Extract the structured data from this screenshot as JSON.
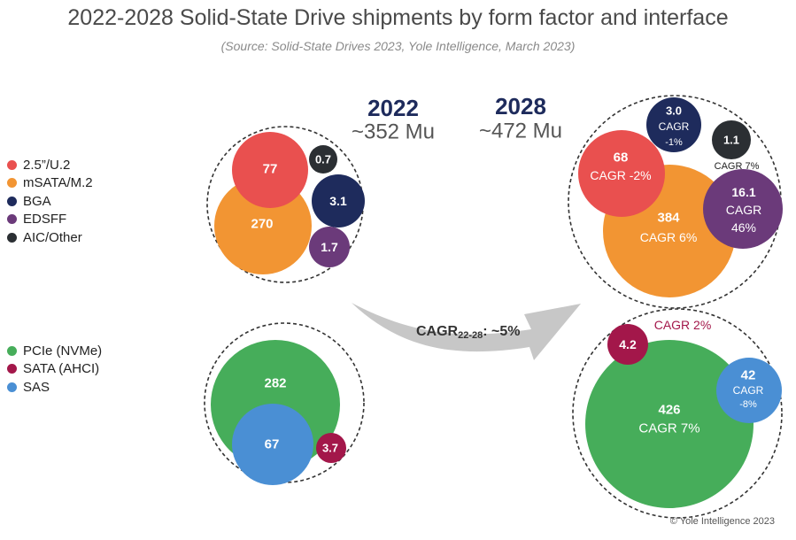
{
  "title": "2022-2028 Solid-State Drive shipments by form factor and interface",
  "subtitle": "(Source: Solid-State Drives 2023, Yole Intelligence, March 2023)",
  "copyright": "© Yole Intelligence 2023",
  "colors": {
    "u2": "#e9504f",
    "msata": "#f29533",
    "bga": "#1e2b5c",
    "edsff": "#6b3a7a",
    "aic": "#2b2f33",
    "pcie": "#46ad5a",
    "sata": "#a3174a",
    "sas": "#4a8fd4",
    "year": "#1e2b5c",
    "total": "#555555",
    "cagr_highlight": "#a3174a"
  },
  "chart_data": {
    "type": "bubble",
    "years": [
      {
        "year": "2022",
        "total": "~352 Mu"
      },
      {
        "year": "2028",
        "total": "~472 Mu"
      }
    ],
    "overall_cagr": {
      "label": "CAGR",
      "sub": "22-28",
      "value": ": ~5%"
    },
    "form_factor": {
      "legend": [
        "2.5”/U.2",
        "mSATA/M.2",
        "BGA",
        "EDSFF",
        "AIC/Other"
      ],
      "series": [
        {
          "name": "2.5”/U.2",
          "color_key": "u2",
          "v2022": "77",
          "v2028": "68",
          "cagr": "CAGR -2%"
        },
        {
          "name": "mSATA/M.2",
          "color_key": "msata",
          "v2022": "270",
          "v2028": "384",
          "cagr": "CAGR 6%"
        },
        {
          "name": "BGA",
          "color_key": "bga",
          "v2022": "3.1",
          "v2028": "3.0",
          "cagr": "CAGR -1%"
        },
        {
          "name": "EDSFF",
          "color_key": "edsff",
          "v2022": "1.7",
          "v2028": "16.1",
          "cagr": "CAGR 46%"
        },
        {
          "name": "AIC/Other",
          "color_key": "aic",
          "v2022": "0.7",
          "v2028": "1.1",
          "cagr": "CAGR 7%"
        }
      ]
    },
    "interface": {
      "legend": [
        "PCIe (NVMe)",
        "SATA (AHCI)",
        "SAS"
      ],
      "series": [
        {
          "name": "PCIe (NVMe)",
          "color_key": "pcie",
          "v2022": "282",
          "v2028": "426",
          "cagr": "CAGR 7%"
        },
        {
          "name": "SATA (AHCI)",
          "color_key": "sata",
          "v2022": "3.7",
          "v2028": "4.2",
          "cagr": "CAGR 2%"
        },
        {
          "name": "SAS",
          "color_key": "sas",
          "v2022": "67",
          "v2028": "42",
          "cagr": "CAGR -8%"
        }
      ]
    }
  }
}
